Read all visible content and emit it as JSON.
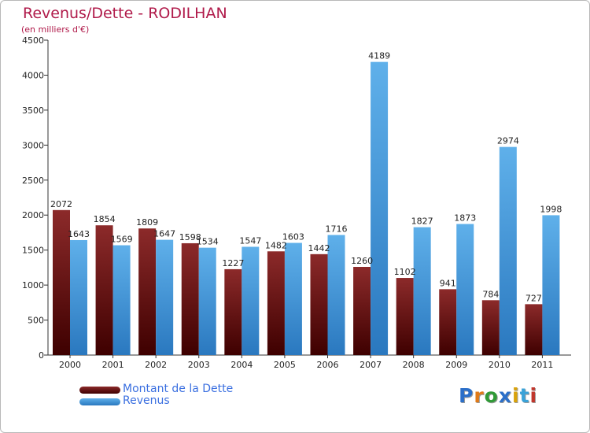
{
  "chart_data": {
    "type": "bar",
    "title": "Revenus/Dette - RODILHAN",
    "subtitle": "(en milliers d'€)",
    "xlabel": "",
    "ylabel": "",
    "ylim": [
      0,
      4500
    ],
    "yticks": [
      0,
      500,
      1000,
      1500,
      2000,
      2500,
      3000,
      3500,
      4000,
      4500
    ],
    "categories": [
      "2000",
      "2001",
      "2002",
      "2003",
      "2004",
      "2005",
      "2006",
      "2007",
      "2008",
      "2009",
      "2010",
      "2011"
    ],
    "series": [
      {
        "name": "Montant de la Dette",
        "values": [
          2072,
          1854,
          1809,
          1598,
          1227,
          1482,
          1442,
          1260,
          1102,
          941,
          784,
          727
        ]
      },
      {
        "name": "Revenus",
        "values": [
          1643,
          1569,
          1647,
          1534,
          1547,
          1603,
          1716,
          4189,
          1827,
          1873,
          2974,
          1998
        ]
      }
    ],
    "legend_position": "bottom-left",
    "grid": false
  },
  "colors": {
    "dette_top": "#8c2a2a",
    "dette_bottom": "#3e0000",
    "revenus_top": "#5fb0ea",
    "revenus_bottom": "#2a78bf",
    "title": "#b01a4a"
  },
  "logo": {
    "letters": [
      "P",
      "r",
      "o",
      "x",
      "i",
      "t",
      "i"
    ],
    "colors": [
      "#2b6fc9",
      "#e07a18",
      "#2f9a36",
      "#2b6fc9",
      "#d9a20a",
      "#3aa2d8",
      "#c0362c"
    ]
  }
}
